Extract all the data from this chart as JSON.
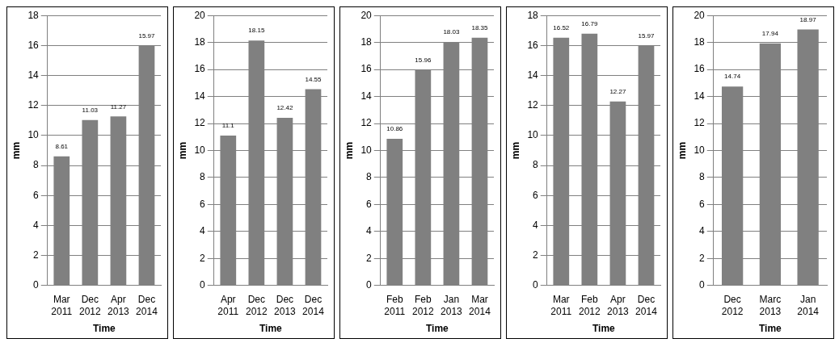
{
  "chart_data": [
    {
      "type": "bar",
      "xlabel": "Time",
      "ylabel": "mm",
      "categories": [
        "Mar 2011",
        "Dec 2012",
        "Apr 2013",
        "Dec 2014"
      ],
      "values": [
        8.61,
        11.03,
        11.27,
        15.97
      ],
      "color": "#808080",
      "ylim": [
        0,
        18
      ],
      "yticks": [
        0,
        2,
        4,
        6,
        8,
        10,
        12,
        14,
        16,
        18
      ],
      "grid": "y",
      "data_labels": true,
      "legend": false
    },
    {
      "type": "bar",
      "xlabel": "Time",
      "ylabel": "mm",
      "categories": [
        "Apr 2011",
        "Dec 2012",
        "Dec 2013",
        "Dec 2014"
      ],
      "values": [
        11.1,
        18.15,
        12.42,
        14.55
      ],
      "color": "#808080",
      "ylim": [
        0,
        20
      ],
      "yticks": [
        0,
        2,
        4,
        6,
        8,
        10,
        12,
        14,
        16,
        18,
        20
      ],
      "grid": "y",
      "data_labels": true,
      "legend": false
    },
    {
      "type": "bar",
      "xlabel": "Time",
      "ylabel": "mm",
      "categories": [
        "Feb 2011",
        "Feb 2012",
        "Jan 2013",
        "Mar 2014"
      ],
      "values": [
        10.86,
        15.96,
        18.03,
        18.35
      ],
      "color": "#808080",
      "ylim": [
        0,
        20
      ],
      "yticks": [
        0,
        2,
        4,
        6,
        8,
        10,
        12,
        14,
        16,
        18,
        20
      ],
      "grid": "y",
      "data_labels": true,
      "legend": false
    },
    {
      "type": "bar",
      "xlabel": "Time",
      "ylabel": "mm",
      "categories": [
        "Mar 2011",
        "Feb 2012",
        "Apr 2013",
        "Dec 2014"
      ],
      "values": [
        16.52,
        16.79,
        12.27,
        15.97
      ],
      "color": "#808080",
      "ylim": [
        0,
        18
      ],
      "yticks": [
        0,
        2,
        4,
        6,
        8,
        10,
        12,
        14,
        16,
        18
      ],
      "grid": "y",
      "data_labels": true,
      "legend": false
    },
    {
      "type": "bar",
      "xlabel": "Time",
      "ylabel": "mm",
      "categories": [
        "Dec 2012",
        "Marc 2013",
        "Jan 2014"
      ],
      "values": [
        14.74,
        17.94,
        18.97
      ],
      "color": "#808080",
      "ylim": [
        0,
        20
      ],
      "yticks": [
        0,
        2,
        4,
        6,
        8,
        10,
        12,
        14,
        16,
        18,
        20
      ],
      "grid": "y",
      "data_labels": true,
      "legend": false
    }
  ]
}
